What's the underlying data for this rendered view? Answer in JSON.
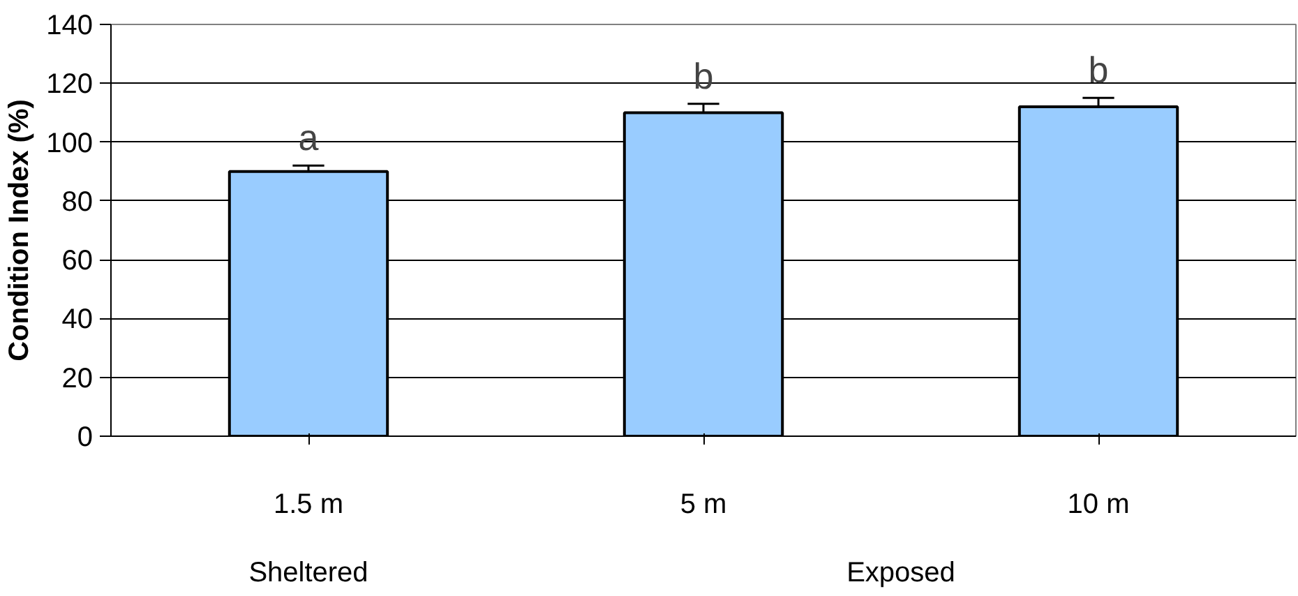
{
  "chart_data": {
    "type": "bar",
    "ylabel": "Condition Index (%)",
    "categories": [
      "1.5 m",
      "5 m",
      "10 m"
    ],
    "values": [
      90,
      110,
      112
    ],
    "errors": [
      2,
      3,
      3
    ],
    "color": "#99ccff",
    "ylim": [
      0,
      140
    ],
    "yticks": [
      0,
      20,
      40,
      60,
      80,
      100,
      120,
      140
    ],
    "grid": "y",
    "annotations": [
      {
        "text": "a",
        "x": "1.5 m",
        "y": 92
      },
      {
        "text": "b",
        "x": "5 m",
        "y": 113
      },
      {
        "text": "b",
        "x": "10 m",
        "y": 115
      },
      "Sheltered",
      "Exposed"
    ]
  }
}
